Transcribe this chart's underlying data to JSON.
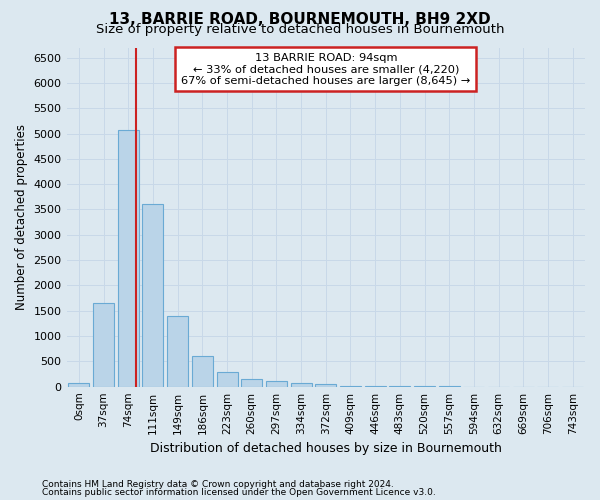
{
  "title": "13, BARRIE ROAD, BOURNEMOUTH, BH9 2XD",
  "subtitle": "Size of property relative to detached houses in Bournemouth",
  "xlabel": "Distribution of detached houses by size in Bournemouth",
  "ylabel": "Number of detached properties",
  "footer1": "Contains HM Land Registry data © Crown copyright and database right 2024.",
  "footer2": "Contains public sector information licensed under the Open Government Licence v3.0.",
  "bar_labels": [
    "0sqm",
    "37sqm",
    "74sqm",
    "111sqm",
    "149sqm",
    "186sqm",
    "223sqm",
    "260sqm",
    "297sqm",
    "334sqm",
    "372sqm",
    "409sqm",
    "446sqm",
    "483sqm",
    "520sqm",
    "557sqm",
    "594sqm",
    "632sqm",
    "669sqm",
    "706sqm",
    "743sqm"
  ],
  "bar_values": [
    80,
    1650,
    5080,
    3600,
    1400,
    610,
    290,
    160,
    110,
    75,
    55,
    20,
    15,
    10,
    8,
    5,
    3,
    2,
    2,
    2,
    2
  ],
  "bar_color": "#bad4e8",
  "bar_edge_color": "#6aaad4",
  "bar_edge_width": 0.8,
  "vline_color": "#cc2222",
  "annotation_title": "13 BARRIE ROAD: 94sqm",
  "annotation_line1": "← 33% of detached houses are smaller (4,220)",
  "annotation_line2": "67% of semi-detached houses are larger (8,645) →",
  "annotation_box_facecolor": "#ffffff",
  "annotation_box_edgecolor": "#cc2222",
  "ylim": [
    0,
    6700
  ],
  "yticks": [
    0,
    500,
    1000,
    1500,
    2000,
    2500,
    3000,
    3500,
    4000,
    4500,
    5000,
    5500,
    6000,
    6500
  ],
  "grid_color": "#c8d8e8",
  "bg_color": "#dce8f0",
  "title_fontsize": 11,
  "subtitle_fontsize": 9.5,
  "ylabel_fontsize": 8.5,
  "xlabel_fontsize": 9,
  "tick_fontsize": 7.5,
  "footer_fontsize": 6.5
}
